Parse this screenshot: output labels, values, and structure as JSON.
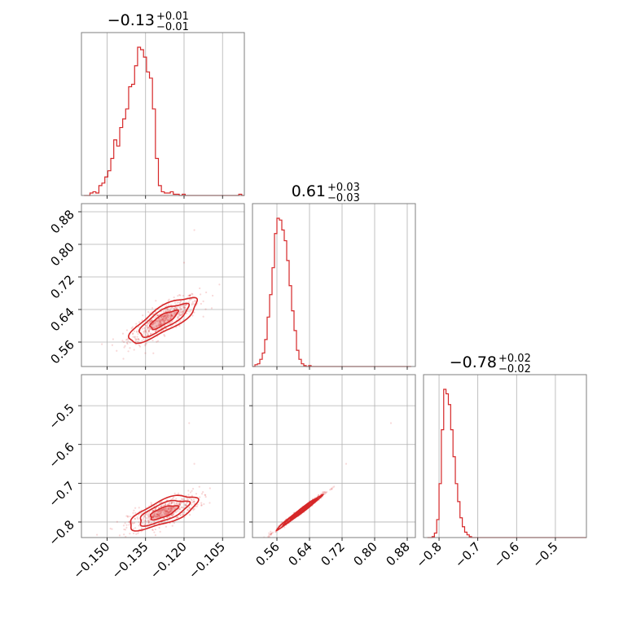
{
  "chart_data": {
    "type": "corner",
    "color": "#d62728",
    "params": [
      {
        "name": "",
        "range": [
          -0.16,
          -0.0965
        ],
        "ticks": [
          -0.15,
          -0.135,
          -0.12,
          -0.105
        ],
        "tick_labels": [
          "−0.150",
          "−0.135",
          "−0.120",
          "−0.105"
        ],
        "title": {
          "median": "−0.13",
          "upper": "+0.01",
          "lower": "−0.01"
        },
        "hist": {
          "start": -0.159,
          "width": 0.00116,
          "counts": [
            0,
            0,
            2,
            3,
            2,
            8,
            10,
            15,
            20,
            30,
            45,
            40,
            55,
            62,
            70,
            88,
            90,
            105,
            120,
            118,
            112,
            100,
            95,
            70,
            30,
            8,
            3,
            2,
            2,
            3,
            1,
            1,
            0,
            1,
            0,
            0,
            0,
            0,
            0,
            0,
            0,
            0,
            0,
            0,
            0,
            0,
            0,
            0,
            0,
            0,
            0,
            0,
            1,
            0
          ]
        }
      },
      {
        "name": "",
        "range": [
          0.5,
          0.9
        ],
        "ticks": [
          0.56,
          0.64,
          0.72,
          0.8,
          0.88
        ],
        "tick_labels": [
          "0.56",
          "0.64",
          "0.72",
          "0.80",
          "0.88"
        ],
        "title": {
          "median": "0.61",
          "upper": "+0.03",
          "lower": "−0.03"
        },
        "hist": {
          "start": 0.5,
          "width": 0.006,
          "counts": [
            0,
            2,
            3,
            8,
            15,
            30,
            55,
            80,
            110,
            148,
            165,
            163,
            152,
            140,
            118,
            90,
            62,
            40,
            18,
            8,
            3,
            1,
            0,
            1,
            0,
            0,
            0,
            0,
            0,
            0,
            0,
            0,
            0,
            0,
            0,
            0,
            0,
            0,
            0,
            0,
            0,
            0,
            0,
            0,
            0,
            0,
            0,
            0,
            0,
            0,
            0,
            0,
            0,
            0,
            0,
            0,
            0,
            0,
            0,
            0,
            0,
            0,
            0,
            0,
            0
          ]
        }
      },
      {
        "name": "",
        "range": [
          -0.84,
          -0.42
        ],
        "ticks": [
          -0.8,
          -0.7,
          -0.6,
          -0.5
        ],
        "tick_labels": [
          "−0.8",
          "−0.7",
          "−0.6",
          "−0.5"
        ],
        "title": {
          "median": "−0.78",
          "upper": "+0.02",
          "lower": "−0.02"
        },
        "hist": {
          "start": -0.83,
          "width": 0.006,
          "counts": [
            0,
            0,
            1,
            5,
            20,
            60,
            120,
            165,
            160,
            148,
            120,
            90,
            60,
            40,
            22,
            12,
            6,
            3,
            1,
            0,
            0,
            0,
            0,
            0,
            0,
            0,
            0,
            0,
            0,
            0,
            0,
            0,
            0,
            0,
            0,
            0,
            0,
            0,
            0,
            0,
            0,
            0,
            0,
            0,
            0,
            0,
            0,
            0,
            0,
            0,
            0,
            0,
            0,
            0,
            0,
            0,
            0,
            0,
            0,
            0,
            0,
            0,
            0,
            0,
            0,
            0,
            0,
            0,
            0,
            0
          ]
        }
      }
    ],
    "pairs": [
      {
        "x": 0,
        "y": 1,
        "center": [
          -0.128,
          0.615
        ],
        "sx": 0.006,
        "sy": 0.025,
        "rho": 0.8,
        "outliers": [
          [
            -0.116,
            0.835
          ],
          [
            -0.12,
            0.755
          ]
        ]
      },
      {
        "x": 0,
        "y": 2,
        "center": [
          -0.128,
          -0.775
        ],
        "sx": 0.006,
        "sy": 0.02,
        "rho": 0.7,
        "outliers": [
          [
            -0.118,
            -0.545
          ],
          [
            -0.116,
            -0.65
          ]
        ]
      },
      {
        "x": 1,
        "y": 2,
        "center": [
          0.615,
          -0.775
        ],
        "sx": 0.025,
        "sy": 0.02,
        "rho": 0.99,
        "outliers": [
          [
            0.84,
            -0.545
          ],
          [
            0.73,
            -0.65
          ]
        ]
      }
    ],
    "grid": true,
    "axis_labels": false,
    "legend": false
  }
}
